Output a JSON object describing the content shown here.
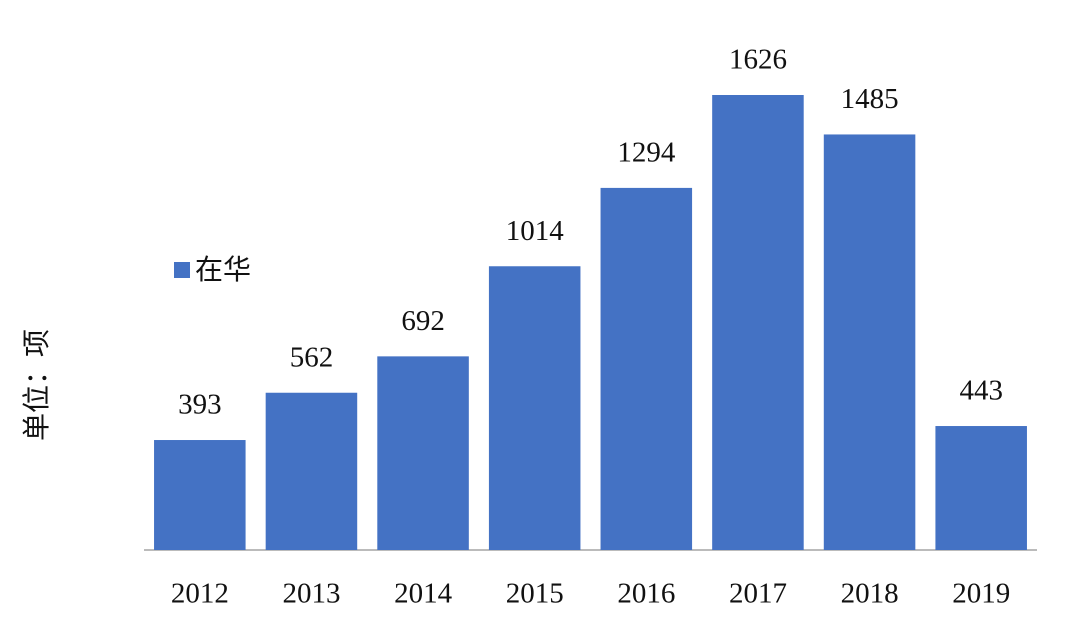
{
  "chart_data": {
    "type": "bar",
    "y_label": "单位：项",
    "categories": [
      "2012",
      "2013",
      "2014",
      "2015",
      "2016",
      "2017",
      "2018",
      "2019"
    ],
    "series": [
      {
        "name": "在华",
        "color": "#4472c4",
        "values": [
          393,
          562,
          692,
          1014,
          1294,
          1626,
          1485,
          443
        ]
      }
    ],
    "legend": "left"
  }
}
